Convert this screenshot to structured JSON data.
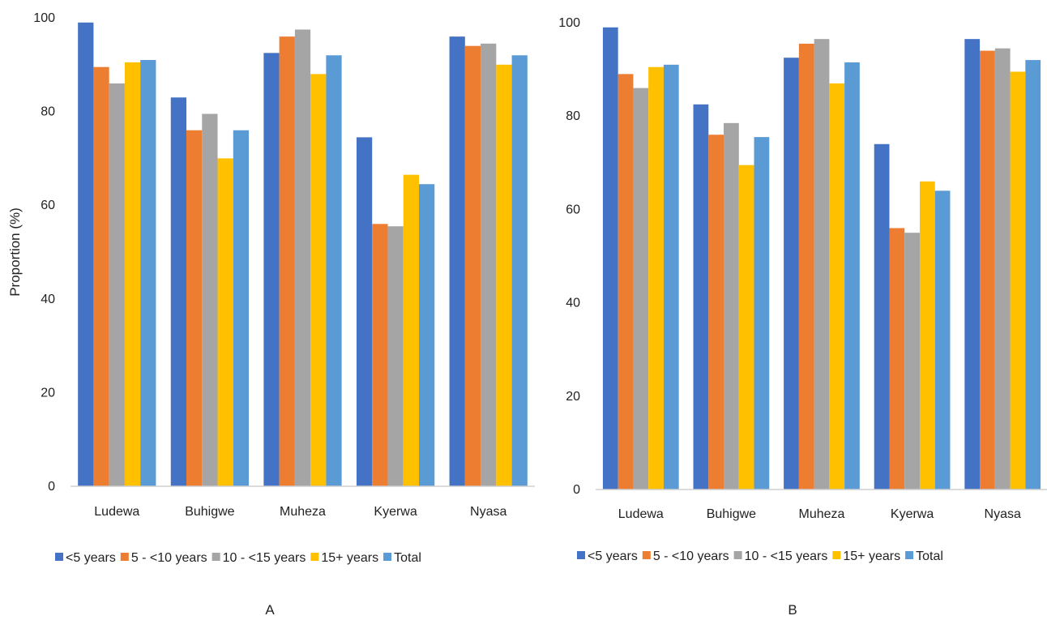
{
  "colors": {
    "<5 years": "#4472c4",
    "5 - <10 years": "#ed7d31",
    "10 - <15 years": "#a5a5a5",
    "15+ years": "#ffc000",
    "Total": "#5b9bd5"
  },
  "chart_data": [
    {
      "type": "bar",
      "panel_label": "A",
      "ylabel": "Proportion (%)",
      "xlabel": "",
      "ylim": [
        0,
        100
      ],
      "yticks": [
        0,
        20,
        40,
        60,
        80,
        100
      ],
      "grid": false,
      "legend_position": "bottom",
      "categories": [
        "Ludewa",
        "Buhigwe",
        "Muheza",
        "Kyerwa",
        "Nyasa"
      ],
      "series": [
        {
          "name": "<5 years",
          "values": [
            99,
            83,
            92.5,
            74.5,
            96
          ]
        },
        {
          "name": "5 - <10 years",
          "values": [
            89.5,
            76,
            96,
            56,
            94
          ]
        },
        {
          "name": "10 - <15 years",
          "values": [
            86,
            79.5,
            97.5,
            55.5,
            94.5
          ]
        },
        {
          "name": "15+ years",
          "values": [
            90.5,
            70,
            88,
            66.5,
            90
          ]
        },
        {
          "name": "Total",
          "values": [
            91,
            76,
            92,
            64.5,
            92
          ]
        }
      ]
    },
    {
      "type": "bar",
      "panel_label": "B",
      "ylabel": "",
      "xlabel": "",
      "ylim": [
        0,
        100
      ],
      "yticks": [
        0,
        20,
        40,
        60,
        80,
        100
      ],
      "grid": false,
      "legend_position": "bottom",
      "categories": [
        "Ludewa",
        "Buhigwe",
        "Muheza",
        "Kyerwa",
        "Nyasa"
      ],
      "series": [
        {
          "name": "<5 years",
          "values": [
            99,
            82.5,
            92.5,
            74,
            96.5
          ]
        },
        {
          "name": "5 - <10 years",
          "values": [
            89,
            76,
            95.5,
            56,
            94
          ]
        },
        {
          "name": "10 - <15 years",
          "values": [
            86,
            78.5,
            96.5,
            55,
            94.5
          ]
        },
        {
          "name": "15+ years",
          "values": [
            90.5,
            69.5,
            87,
            66,
            89.5
          ]
        },
        {
          "name": "Total",
          "values": [
            91,
            75.5,
            91.5,
            64,
            92
          ]
        }
      ]
    }
  ]
}
